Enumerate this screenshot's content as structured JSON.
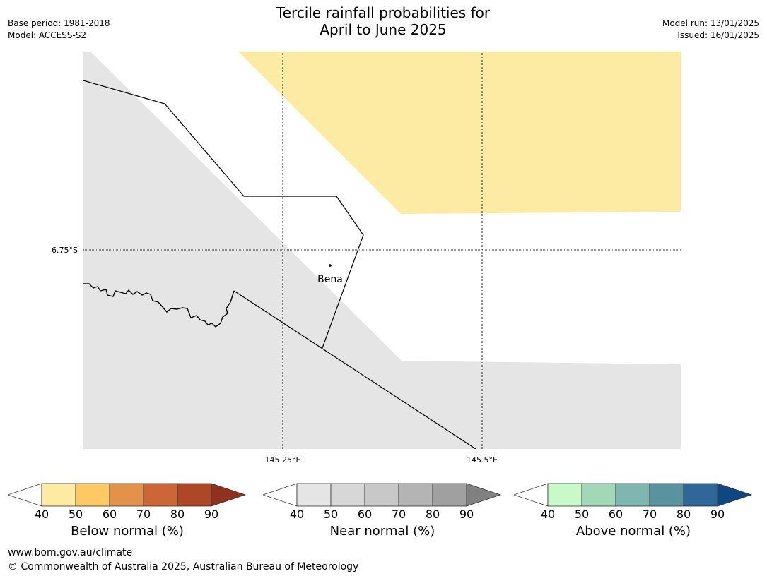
{
  "header": {
    "title_line1": "Tercile rainfall probabilities for",
    "title_line2": "April to June 2025",
    "base_period": "Base period: 1981-2018",
    "model": "Model: ACCESS-S2",
    "model_run": "Model run: 13/01/2025",
    "issued": "Issued: 16/01/2025"
  },
  "map": {
    "latitude_label": "6.75°S",
    "longitude_labels": [
      "145.25°E",
      "145.5°E"
    ],
    "place": "Bena",
    "colors": {
      "below_normal_50_60": "#fdeba3",
      "near_normal_40_50": "#e5e5e5",
      "land_boundary": "#000000"
    }
  },
  "legends": [
    {
      "title": "Below normal (%)",
      "ticks": [
        "40",
        "50",
        "60",
        "70",
        "80",
        "90"
      ],
      "colors": [
        "#ffffff",
        "#fdeba3",
        "#fdc964",
        "#e2924a",
        "#cc6636",
        "#ad4728",
        "#8e321f"
      ]
    },
    {
      "title": "Near normal (%)",
      "ticks": [
        "40",
        "50",
        "60",
        "70",
        "80",
        "90"
      ],
      "colors": [
        "#ffffff",
        "#e5e5e5",
        "#d7d7d7",
        "#c8c8c8",
        "#b4b4b4",
        "#a0a0a0",
        "#808080"
      ]
    },
    {
      "title": "Above normal (%)",
      "ticks": [
        "40",
        "50",
        "60",
        "70",
        "80",
        "90"
      ],
      "colors": [
        "#ffffff",
        "#c9f9c9",
        "#a2d8b8",
        "#7fb6b0",
        "#5a92a0",
        "#2f6798",
        "#0f4880"
      ]
    }
  ],
  "footer": {
    "url": "www.bom.gov.au/climate",
    "copyright": "© Commonwealth of Australia 2025, Australian Bureau of Meteorology"
  }
}
